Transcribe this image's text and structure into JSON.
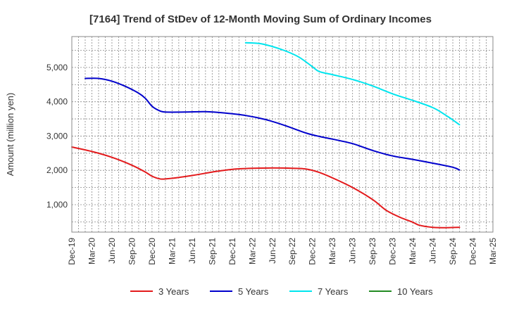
{
  "chart_data": {
    "type": "line",
    "title": "[7164]  Trend of StDev of 12-Month Moving Sum of Ordinary Incomes",
    "xlabel": "",
    "ylabel": "Amount (million yen)",
    "xlim": [
      0,
      63
    ],
    "ylim": [
      200,
      5900
    ],
    "categories": [
      "Dec-19",
      "Mar-20",
      "Jun-20",
      "Sep-20",
      "Dec-20",
      "Mar-21",
      "Jun-21",
      "Sep-21",
      "Dec-21",
      "Mar-22",
      "Jun-22",
      "Sep-22",
      "Dec-22",
      "Mar-23",
      "Jun-23",
      "Sep-23",
      "Dec-23",
      "Mar-24",
      "Jun-24",
      "Sep-24",
      "Dec-24",
      "Mar-25"
    ],
    "y_ticks": [
      {
        "value": 1000,
        "label": "1,000"
      },
      {
        "value": 2000,
        "label": "2,000"
      },
      {
        "value": 3000,
        "label": "3,000"
      },
      {
        "value": 4000,
        "label": "4,000"
      },
      {
        "value": 5000,
        "label": "5,000"
      }
    ],
    "grid": true,
    "legend_position": "bottom",
    "series": [
      {
        "name": "3 Years",
        "color": "#e31a1c",
        "points": [
          [
            0,
            2680
          ],
          [
            3,
            2550
          ],
          [
            6,
            2380
          ],
          [
            9,
            2150
          ],
          [
            11,
            1950
          ],
          [
            12,
            1830
          ],
          [
            13,
            1760
          ],
          [
            14,
            1750
          ],
          [
            18,
            1850
          ],
          [
            21,
            1950
          ],
          [
            24,
            2030
          ],
          [
            27,
            2060
          ],
          [
            30,
            2070
          ],
          [
            33,
            2060
          ],
          [
            35,
            2040
          ],
          [
            37,
            1940
          ],
          [
            39,
            1780
          ],
          [
            42,
            1500
          ],
          [
            45,
            1150
          ],
          [
            47,
            840
          ],
          [
            49,
            640
          ],
          [
            51,
            490
          ],
          [
            52,
            400
          ],
          [
            54,
            340
          ],
          [
            56,
            330
          ],
          [
            58,
            340
          ]
        ]
      },
      {
        "name": "5 Years",
        "color": "#0000cc",
        "points": [
          [
            2,
            4680
          ],
          [
            4,
            4680
          ],
          [
            6,
            4600
          ],
          [
            8,
            4450
          ],
          [
            10,
            4250
          ],
          [
            11,
            4100
          ],
          [
            12,
            3870
          ],
          [
            13,
            3750
          ],
          [
            14,
            3700
          ],
          [
            17,
            3700
          ],
          [
            20,
            3710
          ],
          [
            23,
            3670
          ],
          [
            26,
            3600
          ],
          [
            29,
            3480
          ],
          [
            32,
            3300
          ],
          [
            35,
            3090
          ],
          [
            37,
            2990
          ],
          [
            39,
            2910
          ],
          [
            42,
            2780
          ],
          [
            45,
            2580
          ],
          [
            48,
            2420
          ],
          [
            51,
            2320
          ],
          [
            54,
            2210
          ],
          [
            57,
            2090
          ],
          [
            58,
            2010
          ]
        ]
      },
      {
        "name": "7 Years",
        "color": "#00e5ee",
        "points": [
          [
            26,
            5720
          ],
          [
            28,
            5700
          ],
          [
            30,
            5610
          ],
          [
            32,
            5480
          ],
          [
            34,
            5300
          ],
          [
            36,
            5020
          ],
          [
            37,
            4880
          ],
          [
            39,
            4790
          ],
          [
            42,
            4650
          ],
          [
            45,
            4460
          ],
          [
            48,
            4230
          ],
          [
            51,
            4040
          ],
          [
            54,
            3830
          ],
          [
            56,
            3600
          ],
          [
            58,
            3330
          ]
        ]
      },
      {
        "name": "10 Years",
        "color": "#228b22",
        "points": []
      }
    ]
  }
}
